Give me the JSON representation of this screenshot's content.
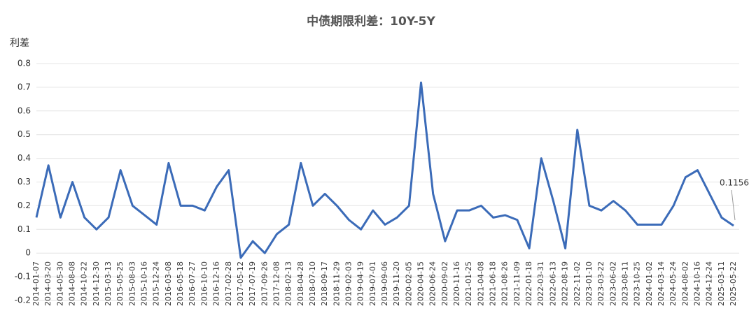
{
  "chart_data": {
    "type": "line",
    "title": "中债期限利差：10Y-5Y",
    "y_label": "利差",
    "categories": [
      "2014-01-07",
      "2014-03-20",
      "2014-05-30",
      "2014-08-08",
      "2014-10-22",
      "2014-12-30",
      "2015-03-13",
      "2015-05-25",
      "2015-08-03",
      "2015-10-16",
      "2015-12-24",
      "2016-03-08",
      "2016-05-18",
      "2016-07-27",
      "2016-10-10",
      "2016-12-16",
      "2017-02-28",
      "2017-05-12",
      "2017-07-19",
      "2017-09-26",
      "2017-12-08",
      "2018-02-13",
      "2018-04-28",
      "2018-07-10",
      "2018-09-17",
      "2018-11-29",
      "2019-02-03",
      "2019-04-19",
      "2019-07-01",
      "2019-09-06",
      "2019-11-20",
      "2020-02-05",
      "2020-04-15",
      "2020-06-24",
      "2020-09-02",
      "2020-11-16",
      "2021-01-25",
      "2021-04-08",
      "2021-06-18",
      "2021-08-26",
      "2021-11-09",
      "2022-01-18",
      "2022-03-31",
      "2022-06-13",
      "2022-08-19",
      "2022-11-02",
      "2023-01-10",
      "2023-03-22",
      "2023-06-02",
      "2023-08-11",
      "2023-10-25",
      "2024-01-02",
      "2024-03-14",
      "2024-05-24",
      "2024-08-02",
      "2024-10-16",
      "2024-12-24",
      "2025-03-11",
      "2025-05-22"
    ],
    "series": [
      {
        "name": "10Y-5Y",
        "color": "#3b6bb8",
        "values": [
          0.15,
          0.37,
          0.15,
          0.3,
          0.15,
          0.1,
          0.15,
          0.35,
          0.2,
          0.16,
          0.12,
          0.38,
          0.2,
          0.2,
          0.18,
          0.28,
          0.35,
          -0.02,
          0.05,
          0.0,
          0.08,
          0.12,
          0.38,
          0.2,
          0.25,
          0.2,
          0.14,
          0.1,
          0.18,
          0.12,
          0.15,
          0.2,
          0.72,
          0.25,
          0.05,
          0.18,
          0.18,
          0.2,
          0.15,
          0.16,
          0.14,
          0.02,
          0.4,
          0.22,
          0.02,
          0.52,
          0.2,
          0.18,
          0.22,
          0.18,
          0.12,
          0.12,
          0.12,
          0.2,
          0.32,
          0.35,
          0.25,
          0.15,
          0.1156
        ]
      }
    ],
    "ylim": [
      -0.2,
      0.8
    ],
    "yticks": [
      0.8,
      0.7,
      0.6,
      0.5,
      0.4,
      0.3,
      0.2,
      0.1,
      0,
      -0.1,
      -0.2
    ],
    "grid": true
  }
}
